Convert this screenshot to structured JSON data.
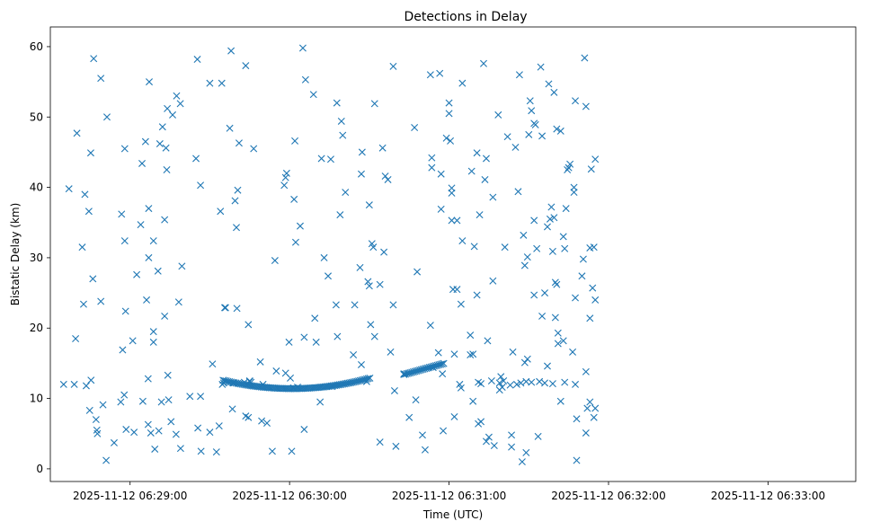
{
  "chart_data": {
    "type": "scatter",
    "title": "Detections in Delay",
    "xlabel": "Time (UTC)",
    "ylabel": "Bistatic Delay (km)",
    "marker": "x",
    "color": "#1f77b4",
    "grid": false,
    "legend": "none",
    "x_ticks": [
      {
        "t": 60,
        "label": "2025-11-12 06:29:00"
      },
      {
        "t": 120,
        "label": "2025-11-12 06:30:00"
      },
      {
        "t": 180,
        "label": "2025-11-12 06:31:00"
      },
      {
        "t": 240,
        "label": "2025-11-12 06:32:00"
      },
      {
        "t": 300,
        "label": "2025-11-12 06:33:00"
      }
    ],
    "xlim_seconds_after_0628": [
      30,
      333
    ],
    "y_ticks": [
      0,
      10,
      20,
      30,
      40,
      50,
      60
    ],
    "ylim": [
      -1.8,
      62.8
    ],
    "series": [
      {
        "points": [
          [
            35,
            12
          ],
          [
            37,
            39.8
          ],
          [
            39,
            12
          ],
          [
            39.5,
            18.5
          ],
          [
            40,
            47.7
          ],
          [
            42,
            31.5
          ],
          [
            42.5,
            23.4
          ],
          [
            43,
            39
          ],
          [
            43.5,
            11.8
          ],
          [
            44.5,
            36.6
          ],
          [
            44.8,
            8.3
          ],
          [
            45.2,
            44.9
          ],
          [
            45.3,
            12.6
          ],
          [
            46,
            27
          ],
          [
            46.3,
            58.3
          ],
          [
            47.2,
            7
          ],
          [
            47.5,
            5.5
          ],
          [
            47.7,
            5
          ],
          [
            49,
            55.5
          ],
          [
            49,
            23.8
          ],
          [
            49.8,
            9.1
          ],
          [
            51,
            1.2
          ],
          [
            51.3,
            50
          ],
          [
            54,
            3.7
          ],
          [
            56.5,
            9.5
          ],
          [
            56.8,
            36.2
          ],
          [
            57.2,
            16.9
          ],
          [
            57.8,
            10.5
          ],
          [
            58,
            45.5
          ],
          [
            58,
            32.4
          ],
          [
            58.3,
            22.4
          ],
          [
            58.5,
            5.6
          ],
          [
            61,
            18.2
          ],
          [
            61.5,
            5.2
          ],
          [
            62.5,
            27.6
          ],
          [
            64,
            34.7
          ],
          [
            64.5,
            43.4
          ],
          [
            64.8,
            9.6
          ],
          [
            65.8,
            46.5
          ],
          [
            66.2,
            24
          ],
          [
            66.8,
            12.8
          ],
          [
            66.8,
            6.3
          ],
          [
            67,
            37
          ],
          [
            67,
            30
          ],
          [
            67.2,
            55
          ],
          [
            67.8,
            5.1
          ],
          [
            68.8,
            32.4
          ],
          [
            68.8,
            19.5
          ],
          [
            68.8,
            18
          ],
          [
            69.3,
            2.8
          ],
          [
            70.5,
            28.1
          ],
          [
            70.8,
            5.4
          ],
          [
            71.2,
            46.2
          ],
          [
            71.8,
            9.5
          ],
          [
            72.2,
            48.6
          ],
          [
            73,
            35.4
          ],
          [
            73,
            21.7
          ],
          [
            73.5,
            45.6
          ],
          [
            73.8,
            42.5
          ],
          [
            74.2,
            13.3
          ],
          [
            74,
            51.2
          ],
          [
            74.5,
            9.8
          ],
          [
            75.4,
            6.7
          ],
          [
            76,
            50.3
          ],
          [
            77.3,
            4.9
          ],
          [
            77.5,
            53
          ],
          [
            78.3,
            23.7
          ],
          [
            78.9,
            51.9
          ],
          [
            79,
            2.9
          ],
          [
            79.5,
            28.8
          ],
          [
            82.5,
            10.3
          ],
          [
            84.8,
            44.1
          ],
          [
            85.3,
            58.2
          ],
          [
            85.5,
            5.8
          ],
          [
            86.5,
            40.3
          ],
          [
            86.5,
            10.3
          ],
          [
            86.7,
            2.5
          ],
          [
            90,
            54.8
          ],
          [
            90,
            5.2
          ],
          [
            91,
            14.9
          ],
          [
            92.5,
            2.4
          ],
          [
            93.5,
            6.1
          ],
          [
            94,
            36.6
          ],
          [
            94.5,
            54.8
          ],
          [
            94.7,
            12
          ],
          [
            95.2,
            12.2
          ],
          [
            95.6,
            22.9
          ],
          [
            95.9,
            22.9
          ],
          [
            97.5,
            48.4
          ],
          [
            98,
            59.4
          ],
          [
            98.5,
            8.5
          ],
          [
            98.8,
            12.2
          ],
          [
            99.5,
            38.1
          ],
          [
            100,
            34.3
          ],
          [
            100.2,
            22.8
          ],
          [
            100.5,
            39.6
          ],
          [
            101,
            46.3
          ],
          [
            103,
            12.3
          ],
          [
            103.5,
            57.3
          ],
          [
            103.5,
            7.5
          ],
          [
            104.5,
            7.3
          ],
          [
            104.5,
            20.5
          ],
          [
            105,
            12.5
          ],
          [
            105,
            12.4
          ],
          [
            105.5,
            12.3
          ],
          [
            106.5,
            45.5
          ],
          [
            109,
            15.2
          ],
          [
            109.5,
            6.8
          ],
          [
            110,
            12
          ],
          [
            111.5,
            6.5
          ],
          [
            113.5,
            2.5
          ],
          [
            114.5,
            29.6
          ],
          [
            115,
            13.9
          ],
          [
            118,
            40.3
          ],
          [
            118.5,
            41.4
          ],
          [
            118.5,
            13.6
          ],
          [
            118.9,
            42
          ],
          [
            119.8,
            18
          ],
          [
            120.3,
            12.9
          ],
          [
            120.8,
            2.5
          ],
          [
            121.5,
            11.5
          ],
          [
            121.7,
            38.3
          ],
          [
            122,
            46.6
          ],
          [
            122.3,
            32.2
          ],
          [
            123,
            11.6
          ],
          [
            124,
            34.5
          ],
          [
            125,
            59.8
          ],
          [
            125.5,
            18.7
          ],
          [
            125.5,
            5.6
          ],
          [
            126,
            55.3
          ],
          [
            129,
            53.2
          ],
          [
            129.5,
            21.4
          ],
          [
            130,
            18
          ],
          [
            131.5,
            9.5
          ],
          [
            132,
            44.1
          ],
          [
            133,
            30
          ],
          [
            134.5,
            27.4
          ],
          [
            135.5,
            44
          ],
          [
            136,
            11.7
          ],
          [
            137.5,
            23.3
          ],
          [
            137.8,
            52
          ],
          [
            138,
            18.8
          ],
          [
            139,
            36.1
          ],
          [
            139.5,
            49.4
          ],
          [
            140,
            47.4
          ],
          [
            141,
            39.3
          ],
          [
            144,
            16.2
          ],
          [
            144.5,
            23.3
          ],
          [
            146.5,
            28.6
          ],
          [
            147,
            14.8
          ],
          [
            147,
            41.9
          ],
          [
            147.3,
            45
          ],
          [
            149,
            12.4
          ],
          [
            149.5,
            26.6
          ],
          [
            150,
            37.5
          ],
          [
            150,
            26
          ],
          [
            150.5,
            20.5
          ],
          [
            151,
            32
          ],
          [
            151.5,
            31.5
          ],
          [
            152,
            18.8
          ],
          [
            152,
            51.9
          ],
          [
            154,
            26.2
          ],
          [
            154,
            3.8
          ],
          [
            155,
            45.6
          ],
          [
            155.5,
            30.8
          ],
          [
            156,
            41.6
          ],
          [
            157,
            41.1
          ],
          [
            158,
            16.6
          ],
          [
            159,
            57.2
          ],
          [
            159,
            23.3
          ],
          [
            159.5,
            11.1
          ],
          [
            160,
            3.2
          ],
          [
            163,
            13.5
          ],
          [
            165,
            7.3
          ],
          [
            167,
            48.5
          ],
          [
            167.5,
            9.8
          ],
          [
            168,
            28
          ],
          [
            170,
            4.8
          ],
          [
            171,
            2.7
          ],
          [
            173,
            20.4
          ],
          [
            173,
            56
          ],
          [
            173.5,
            44.2
          ],
          [
            173.5,
            42.8
          ],
          [
            174,
            14.4
          ],
          [
            176,
            16.5
          ],
          [
            176.5,
            56.2
          ],
          [
            177,
            41.9
          ],
          [
            177,
            36.9
          ],
          [
            177.5,
            13.5
          ],
          [
            177.8,
            5.4
          ],
          [
            179,
            47
          ],
          [
            180,
            52
          ],
          [
            180,
            50.5
          ],
          [
            180.5,
            46.6
          ],
          [
            181,
            39.9
          ],
          [
            181,
            39.2
          ],
          [
            181,
            35.3
          ],
          [
            181.5,
            25.5
          ],
          [
            182,
            16.3
          ],
          [
            182,
            7.4
          ],
          [
            183,
            35.3
          ],
          [
            183,
            25.5
          ],
          [
            184,
            12
          ],
          [
            184.5,
            11.5
          ],
          [
            184.5,
            23.4
          ],
          [
            185,
            54.8
          ],
          [
            185,
            32.4
          ],
          [
            188,
            16.2
          ],
          [
            188,
            19
          ],
          [
            188.5,
            42.3
          ],
          [
            189,
            16.3
          ],
          [
            189,
            9.6
          ],
          [
            189.5,
            31.6
          ],
          [
            190.5,
            44.9
          ],
          [
            190.5,
            24.7
          ],
          [
            191,
            6.4
          ],
          [
            191,
            12.3
          ],
          [
            191.5,
            36.1
          ],
          [
            192,
            6.7
          ],
          [
            192,
            12.1
          ],
          [
            193,
            57.6
          ],
          [
            193.5,
            41.1
          ],
          [
            194,
            3.9
          ],
          [
            194,
            44.1
          ],
          [
            194.5,
            18.2
          ],
          [
            195,
            4.5
          ],
          [
            196,
            12.5
          ],
          [
            196.5,
            38.6
          ],
          [
            196.5,
            26.7
          ],
          [
            197,
            3.3
          ],
          [
            198.5,
            50.3
          ],
          [
            199,
            11.2
          ],
          [
            199,
            12.2
          ],
          [
            199.5,
            13.1
          ],
          [
            200,
            11.6
          ],
          [
            200.5,
            12.5
          ],
          [
            201,
            31.5
          ],
          [
            202,
            47.2
          ],
          [
            203,
            11.9
          ],
          [
            203.5,
            4.8
          ],
          [
            203.5,
            3.1
          ],
          [
            204,
            16.6
          ],
          [
            205,
            45.7
          ],
          [
            205.5,
            12
          ],
          [
            206,
            39.4
          ],
          [
            206.5,
            56
          ],
          [
            207,
            12.2
          ],
          [
            207.5,
            1
          ],
          [
            208,
            33.2
          ],
          [
            208.5,
            28.9
          ],
          [
            208.5,
            15.1
          ],
          [
            209,
            2.3
          ],
          [
            209,
            12.4
          ],
          [
            209.5,
            30.1
          ],
          [
            209.5,
            15.6
          ],
          [
            210,
            47.5
          ],
          [
            210.5,
            52.3
          ],
          [
            211,
            12.3
          ],
          [
            211,
            50.9
          ],
          [
            212,
            35.3
          ],
          [
            212,
            24.7
          ],
          [
            212.5,
            48.9
          ],
          [
            212,
            49.1
          ],
          [
            213,
            31.3
          ],
          [
            213.5,
            4.6
          ],
          [
            214,
            12.4
          ],
          [
            214.5,
            57.1
          ],
          [
            215,
            47.3
          ],
          [
            215,
            21.7
          ],
          [
            216,
            12.2
          ],
          [
            216,
            25
          ],
          [
            217,
            34.4
          ],
          [
            217,
            14.6
          ],
          [
            217.5,
            54.7
          ],
          [
            218,
            35.5
          ],
          [
            218.5,
            37.2
          ],
          [
            219,
            12.1
          ],
          [
            219,
            30.9
          ],
          [
            219.5,
            35.7
          ],
          [
            219.5,
            53.5
          ],
          [
            220,
            21.5
          ],
          [
            220,
            26.5
          ],
          [
            220.5,
            26.2
          ],
          [
            220.5,
            48.3
          ],
          [
            221,
            19.3
          ],
          [
            221,
            17.8
          ],
          [
            222,
            48
          ],
          [
            222,
            9.6
          ],
          [
            223,
            18.2
          ],
          [
            223,
            33
          ],
          [
            223.5,
            12.3
          ],
          [
            223.5,
            31.3
          ],
          [
            224,
            37
          ],
          [
            224.5,
            42.5
          ],
          [
            225,
            42.8
          ],
          [
            225.5,
            43.3
          ],
          [
            226.5,
            16.6
          ],
          [
            227,
            40
          ],
          [
            227,
            39.3
          ],
          [
            227.5,
            12
          ],
          [
            227.5,
            24.3
          ],
          [
            227.5,
            52.3
          ],
          [
            228,
            7.1
          ],
          [
            228,
            1.2
          ],
          [
            230,
            27.4
          ],
          [
            230.5,
            29.8
          ],
          [
            231,
            58.4
          ],
          [
            231.5,
            51.5
          ],
          [
            231.5,
            13.8
          ],
          [
            231.5,
            5.1
          ],
          [
            232,
            8.6
          ],
          [
            233,
            21.4
          ],
          [
            233,
            31.4
          ],
          [
            233,
            9.5
          ],
          [
            233.5,
            42.6
          ],
          [
            234,
            25.7
          ],
          [
            234.5,
            7.3
          ],
          [
            234.5,
            31.5
          ],
          [
            235,
            24
          ],
          [
            235,
            8.6
          ],
          [
            235,
            44
          ]
        ]
      }
    ]
  }
}
